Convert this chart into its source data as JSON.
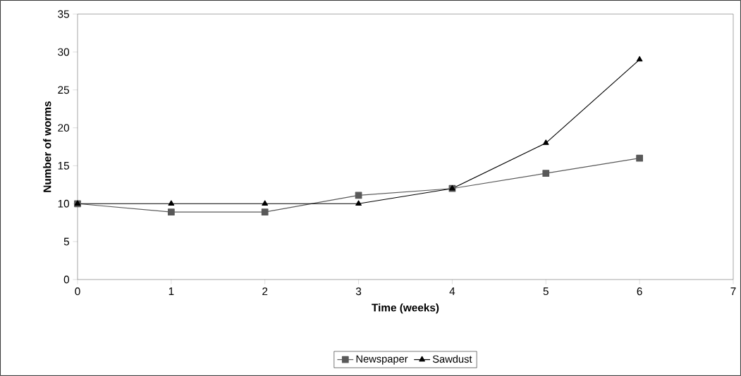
{
  "chart_data": {
    "type": "line",
    "xlabel": "Time (weeks)",
    "ylabel": "Number of worms",
    "x": [
      0,
      1,
      2,
      3,
      4,
      5,
      6
    ],
    "series": [
      {
        "name": "Newspaper",
        "color": "#595959",
        "marker": "square",
        "values": [
          10,
          8.9,
          8.9,
          11.1,
          12,
          14,
          16
        ]
      },
      {
        "name": "Sawdust",
        "color": "#000000",
        "marker": "triangle",
        "values": [
          10,
          10,
          10,
          10,
          12,
          18,
          29
        ]
      }
    ],
    "xlim": [
      0,
      7
    ],
    "xticks": [
      0,
      1,
      2,
      3,
      4,
      5,
      6,
      7
    ],
    "ylim": [
      0,
      35
    ],
    "yticks": [
      0,
      5,
      10,
      15,
      20,
      25,
      30,
      35
    ],
    "grid": false,
    "legend": "bottom",
    "line_style": "solid"
  }
}
